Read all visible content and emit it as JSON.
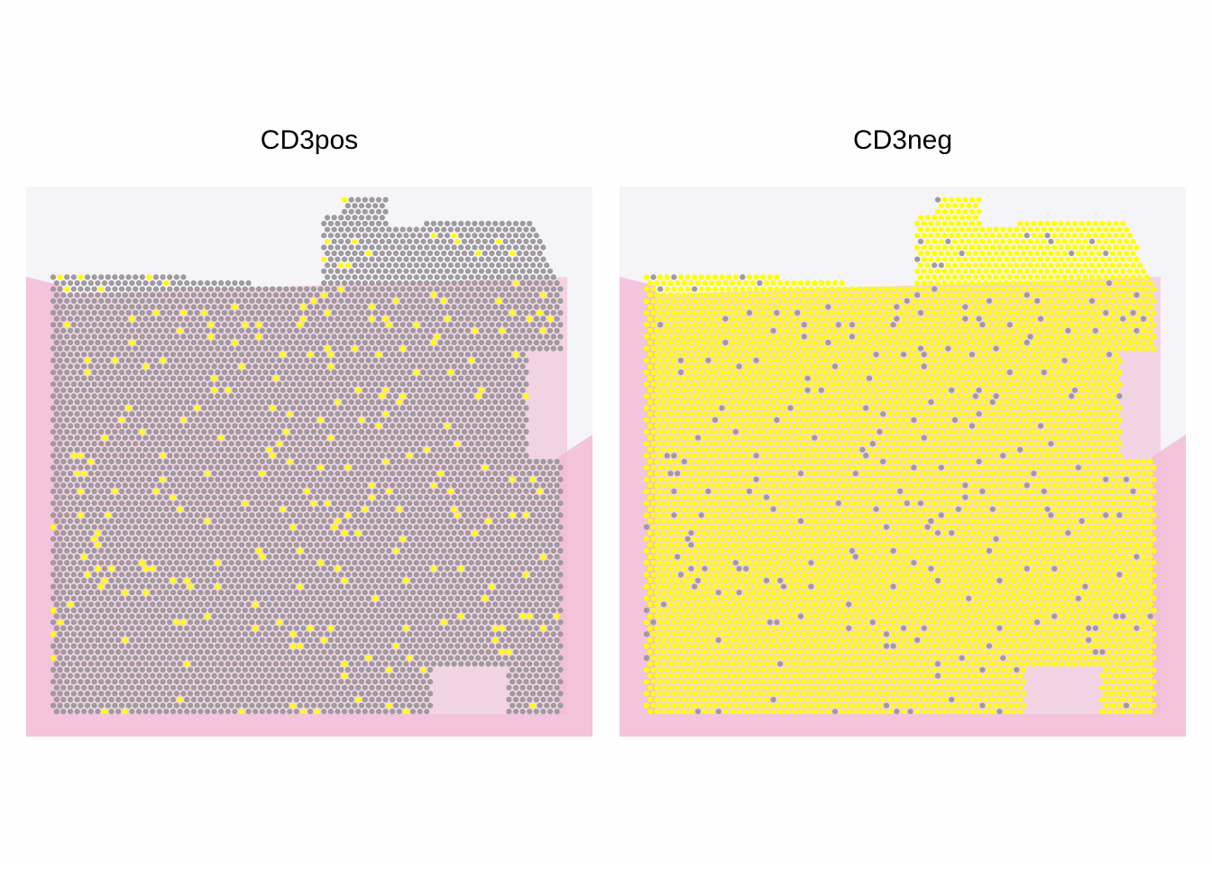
{
  "panels": [
    {
      "title": "CD3pos"
    },
    {
      "title": "CD3neg"
    }
  ]
}
